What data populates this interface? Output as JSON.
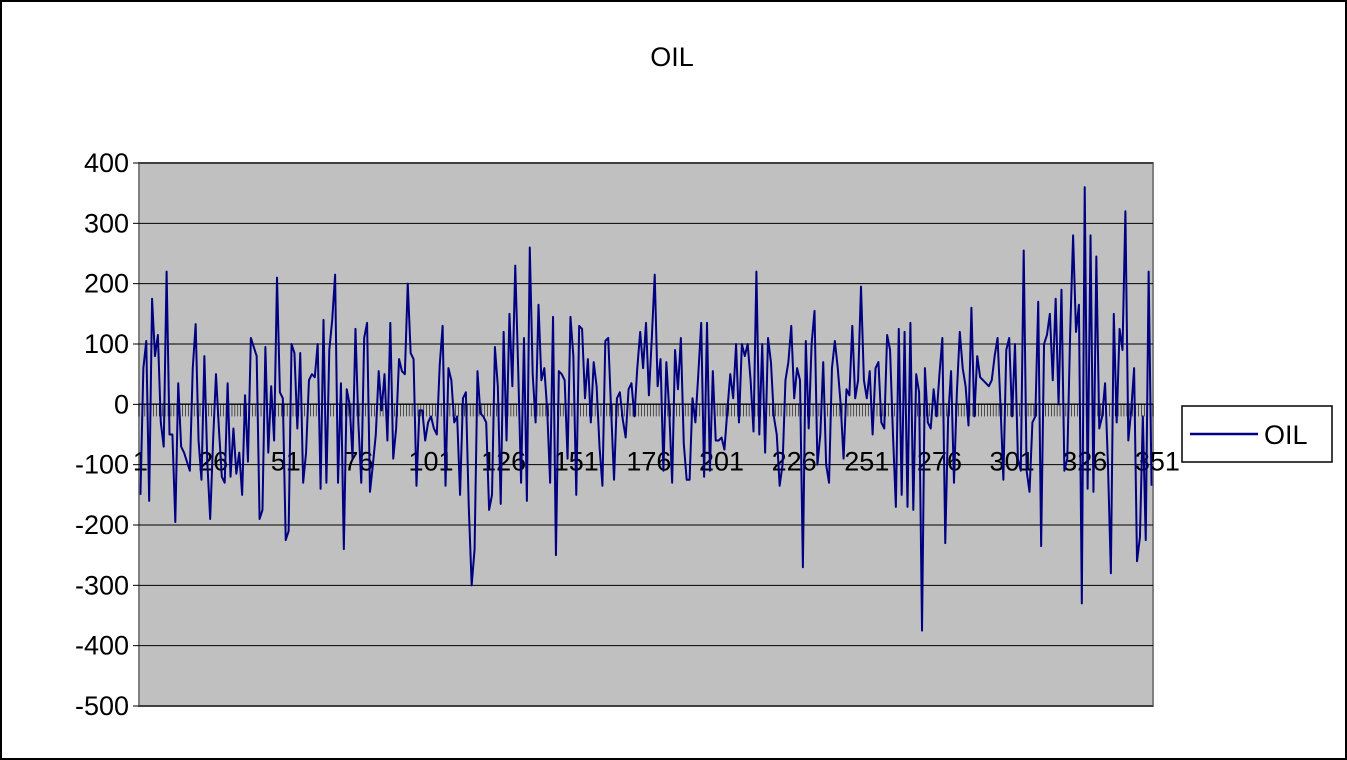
{
  "chart_data": {
    "type": "line",
    "title": "OIL",
    "xlabel": "",
    "ylabel": "",
    "x_start": 1,
    "x_tick_labels": [
      "1",
      "26",
      "51",
      "76",
      "101",
      "126",
      "151",
      "176",
      "201",
      "226",
      "251",
      "276",
      "301",
      "326",
      "351"
    ],
    "y_tick_labels": [
      "400",
      "300",
      "200",
      "100",
      "0",
      "-100",
      "-200",
      "-300",
      "-400",
      "-500"
    ],
    "ylim": [
      -500,
      400
    ],
    "y_step": 100,
    "grid": true,
    "plot_background": "#c0c0c0",
    "legend_position": "right",
    "series": [
      {
        "name": "OIL",
        "color": "#000080",
        "values": [
          -150,
          60,
          105,
          -160,
          175,
          80,
          115,
          -30,
          -70,
          220,
          -50,
          -50,
          -195,
          35,
          -70,
          -80,
          -95,
          -110,
          60,
          133,
          -60,
          -125,
          80,
          -95,
          -190,
          -60,
          50,
          -40,
          -120,
          -130,
          35,
          -120,
          -40,
          -115,
          -80,
          -150,
          15,
          -95,
          110,
          95,
          80,
          -190,
          -175,
          95,
          -80,
          30,
          -60,
          210,
          20,
          10,
          -225,
          -210,
          100,
          85,
          -40,
          85,
          -130,
          -80,
          40,
          50,
          45,
          100,
          -140,
          140,
          -130,
          90,
          140,
          215,
          -130,
          35,
          -240,
          25,
          0,
          -90,
          125,
          -30,
          -130,
          110,
          135,
          -145,
          -100,
          -50,
          55,
          -10,
          50,
          -60,
          135,
          -90,
          -40,
          75,
          55,
          50,
          200,
          85,
          75,
          -135,
          -10,
          -10,
          -60,
          -30,
          -20,
          -40,
          -50,
          65,
          130,
          -135,
          60,
          40,
          -30,
          -20,
          -150,
          10,
          20,
          -170,
          -300,
          -240,
          55,
          -15,
          -20,
          -30,
          -175,
          -150,
          95,
          30,
          -165,
          120,
          -60,
          150,
          30,
          230,
          60,
          -130,
          110,
          -160,
          260,
          50,
          -30,
          165,
          40,
          60,
          -10,
          -130,
          145,
          -250,
          55,
          50,
          40,
          -90,
          145,
          80,
          -150,
          130,
          125,
          10,
          75,
          -30,
          70,
          30,
          -70,
          -135,
          105,
          110,
          -10,
          -125,
          10,
          20,
          -25,
          -55,
          25,
          35,
          -20,
          60,
          120,
          60,
          135,
          15,
          110,
          215,
          30,
          75,
          -110,
          70,
          -10,
          -130,
          90,
          25,
          110,
          -65,
          -125,
          -125,
          10,
          -30,
          50,
          135,
          -120,
          135,
          -110,
          55,
          -60,
          -60,
          -55,
          -75,
          -10,
          50,
          10,
          100,
          -30,
          100,
          80,
          100,
          40,
          -45,
          220,
          -50,
          100,
          -80,
          110,
          70,
          -20,
          -50,
          -135,
          -100,
          40,
          70,
          130,
          10,
          60,
          40,
          -270,
          105,
          -40,
          100,
          155,
          -100,
          -50,
          70,
          -100,
          -130,
          60,
          105,
          60,
          0,
          -90,
          25,
          15,
          130,
          10,
          40,
          195,
          40,
          10,
          55,
          -50,
          60,
          70,
          -30,
          -40,
          115,
          90,
          -50,
          -170,
          125,
          -150,
          120,
          -170,
          135,
          -175,
          50,
          20,
          -375,
          60,
          -30,
          -40,
          25,
          -20,
          50,
          110,
          -230,
          -20,
          55,
          -130,
          20,
          120,
          60,
          30,
          -35,
          160,
          -20,
          80,
          45,
          40,
          35,
          30,
          40,
          80,
          110,
          0,
          -125,
          90,
          110,
          -20,
          100,
          -90,
          -110,
          255,
          -110,
          -145,
          -30,
          -20,
          170,
          -235,
          100,
          115,
          150,
          40,
          175,
          0,
          190,
          -110,
          -90,
          120,
          280,
          120,
          165,
          -330,
          360,
          -140,
          280,
          -145,
          245,
          -40,
          -20,
          35,
          -100,
          -280,
          150,
          -30,
          125,
          90,
          320,
          -60,
          -10,
          60,
          -260,
          -220,
          -20,
          -225,
          220,
          -135
        ]
      }
    ]
  }
}
